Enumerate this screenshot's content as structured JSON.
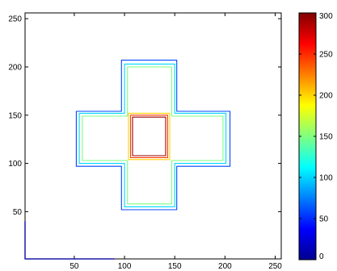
{
  "chart_data": {
    "type": "contour",
    "title": "",
    "xlabel": "",
    "ylabel": "",
    "xlim": [
      1,
      256
    ],
    "ylim": [
      1,
      256
    ],
    "x_ticks": [
      50,
      100,
      150,
      200,
      250
    ],
    "y_ticks": [
      50,
      100,
      150,
      200,
      250
    ],
    "colorbar": {
      "range": [
        0,
        300
      ],
      "ticks": [
        0,
        50,
        100,
        150,
        200,
        250,
        300
      ],
      "colormap": "jet",
      "stops": [
        "#00008f",
        "#0000ff",
        "#00ffff",
        "#80ff80",
        "#ffff00",
        "#ff0000",
        "#800000"
      ]
    },
    "contours": [
      {
        "level": 60,
        "color": "#0046ff",
        "shape": "cross",
        "x_span": [
          52,
          205
        ],
        "y_span": [
          52,
          207
        ],
        "arm_x_span": [
          97,
          152
        ],
        "arm_y_span": [
          97,
          154
        ]
      },
      {
        "level": 95,
        "color": "#00d8ff",
        "shape": "cross",
        "x_span": [
          55,
          201
        ],
        "y_span": [
          55,
          203
        ],
        "arm_x_span": [
          100,
          150
        ],
        "arm_y_span": [
          100,
          152
        ]
      },
      {
        "level": 140,
        "color": "#7dff82",
        "shape": "cross",
        "x_span": [
          58,
          198
        ],
        "y_span": [
          58,
          200
        ],
        "arm_x_span": [
          103,
          147
        ],
        "arm_y_span": [
          103,
          149
        ]
      },
      {
        "level": 195,
        "color": "#ffd400",
        "shape": "rectangle",
        "x_span": [
          104,
          145
        ],
        "y_span": [
          104,
          152
        ]
      },
      {
        "level": 245,
        "color": "#ff3c00",
        "shape": "rectangle",
        "x_span": [
          106,
          143
        ],
        "y_span": [
          106,
          150
        ]
      },
      {
        "level": 290,
        "color": "#9a0000",
        "shape": "rectangle",
        "x_span": [
          108,
          141
        ],
        "y_span": [
          108,
          148
        ]
      },
      {
        "level": 20,
        "color": "#1a1aa8",
        "shape": "corner",
        "points": [
          [
            1,
            40
          ],
          [
            1,
            1
          ],
          [
            90,
            1
          ]
        ]
      }
    ]
  }
}
